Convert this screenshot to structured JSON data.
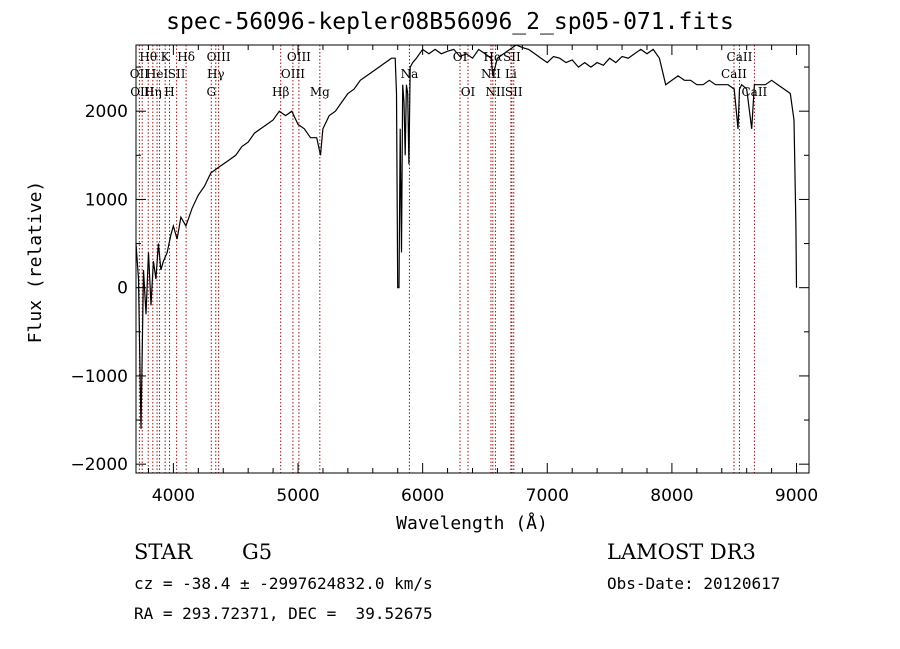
{
  "chart_data": {
    "type": "line",
    "title": "spec-56096-kepler08B56096_2_sp05-071.fits",
    "xlabel": "Wavelength (Å)",
    "ylabel": "Flux (relative)",
    "xlim": [
      3700,
      9100
    ],
    "ylim": [
      -2100,
      2750
    ],
    "xticks": [
      4000,
      5000,
      6000,
      7000,
      8000,
      9000
    ],
    "yticks": [
      -2000,
      -1000,
      0,
      1000,
      2000
    ],
    "series": [
      {
        "name": "flux",
        "x": [
          3700,
          3720,
          3740,
          3760,
          3780,
          3800,
          3820,
          3840,
          3860,
          3880,
          3900,
          3920,
          3950,
          3980,
          4000,
          4030,
          4060,
          4100,
          4150,
          4200,
          4250,
          4300,
          4350,
          4400,
          4450,
          4500,
          4550,
          4600,
          4650,
          4700,
          4750,
          4800,
          4850,
          4900,
          4950,
          5000,
          5050,
          5100,
          5150,
          5180,
          5200,
          5250,
          5300,
          5350,
          5400,
          5450,
          5500,
          5550,
          5600,
          5650,
          5700,
          5750,
          5780,
          5790,
          5800,
          5810,
          5820,
          5830,
          5840,
          5850,
          5860,
          5870,
          5880,
          5890,
          5900,
          5920,
          5950,
          6000,
          6050,
          6100,
          6150,
          6200,
          6250,
          6300,
          6350,
          6400,
          6450,
          6500,
          6550,
          6563,
          6600,
          6650,
          6700,
          6750,
          6800,
          6850,
          6900,
          6950,
          7000,
          7050,
          7100,
          7150,
          7200,
          7250,
          7300,
          7350,
          7400,
          7450,
          7500,
          7550,
          7600,
          7650,
          7700,
          7750,
          7800,
          7850,
          7900,
          7950,
          8000,
          8050,
          8100,
          8150,
          8200,
          8250,
          8300,
          8350,
          8400,
          8450,
          8500,
          8530,
          8542,
          8560,
          8600,
          8640,
          8662,
          8680,
          8700,
          8750,
          8800,
          8850,
          8900,
          8950,
          8980,
          8995,
          9000
        ],
        "y": [
          500,
          100,
          -1600,
          200,
          -300,
          400,
          -200,
          300,
          100,
          500,
          200,
          300,
          400,
          600,
          700,
          550,
          800,
          700,
          900,
          1050,
          1150,
          1300,
          1350,
          1400,
          1450,
          1500,
          1600,
          1650,
          1750,
          1800,
          1850,
          1900,
          2000,
          1950,
          2000,
          1850,
          1800,
          1700,
          1700,
          1500,
          1800,
          1950,
          2000,
          2100,
          2200,
          2250,
          2350,
          2400,
          2450,
          2500,
          2550,
          2600,
          2600,
          2200,
          0,
          0,
          1800,
          400,
          2300,
          2100,
          1500,
          2300,
          2200,
          1400,
          2500,
          2550,
          2600,
          2700,
          2650,
          2700,
          2650,
          2680,
          2700,
          2620,
          2650,
          2600,
          2700,
          2650,
          2600,
          2400,
          2600,
          2650,
          2700,
          2750,
          2720,
          2700,
          2650,
          2600,
          2550,
          2620,
          2600,
          2550,
          2580,
          2500,
          2550,
          2500,
          2550,
          2520,
          2600,
          2550,
          2620,
          2600,
          2650,
          2700,
          2650,
          2700,
          2600,
          2300,
          2350,
          2400,
          2350,
          2350,
          2300,
          2300,
          2350,
          2300,
          2300,
          2300,
          2250,
          1800,
          2250,
          2300,
          2250,
          1800,
          2300,
          2300,
          2300,
          2300,
          2350,
          2300,
          2250,
          2200,
          1900,
          700,
          0
        ]
      }
    ],
    "lines": [
      {
        "wave": 3727,
        "label": "OII",
        "row": 2
      },
      {
        "wave": 3750,
        "label": "OIII",
        "row": 3
      },
      {
        "wave": 3798,
        "label": "Hθ",
        "row": 1
      },
      {
        "wave": 3835,
        "label": "Hη",
        "row": 3
      },
      {
        "wave": 3869,
        "label": "HeI",
        "row": 2
      },
      {
        "wave": 3889,
        "label": "",
        "row": 0
      },
      {
        "wave": 3934,
        "label": "K",
        "row": 1
      },
      {
        "wave": 3969,
        "label": "H",
        "row": 3
      },
      {
        "wave": 4026,
        "label": "SII",
        "row": 2
      },
      {
        "wave": 4102,
        "label": "Hδ",
        "row": 1
      },
      {
        "wave": 4304,
        "label": "G",
        "row": 3
      },
      {
        "wave": 4340,
        "label": "Hγ",
        "row": 2
      },
      {
        "wave": 4363,
        "label": "OIII",
        "row": 1
      },
      {
        "wave": 4861,
        "label": "Hβ",
        "row": 3
      },
      {
        "wave": 4959,
        "label": "OIII",
        "row": 2
      },
      {
        "wave": 5007,
        "label": "OIII",
        "row": 1
      },
      {
        "wave": 5175,
        "label": "Mg",
        "row": 3
      },
      {
        "wave": 5894,
        "label": "Na",
        "row": 2
      },
      {
        "wave": 6300,
        "label": "OI",
        "row": 1
      },
      {
        "wave": 6364,
        "label": "OI",
        "row": 3
      },
      {
        "wave": 6548,
        "label": "NII",
        "row": 2
      },
      {
        "wave": 6563,
        "label": "Hα",
        "row": 1
      },
      {
        "wave": 6584,
        "label": "NII",
        "row": 3
      },
      {
        "wave": 6708,
        "label": "Li",
        "row": 2
      },
      {
        "wave": 6716,
        "label": "SII",
        "row": 1
      },
      {
        "wave": 6731,
        "label": "SII",
        "row": 3
      },
      {
        "wave": 8498,
        "label": "CaII",
        "row": 2
      },
      {
        "wave": 8542,
        "label": "CaII",
        "row": 1
      },
      {
        "wave": 8662,
        "label": "CaII",
        "row": 3
      }
    ]
  },
  "info": {
    "object_class": "STAR",
    "subclass": "G5",
    "survey": "LAMOST DR3",
    "cz_line": "cz = -38.4 ± -2997624832.0 km/s",
    "obs_date": "Obs-Date: 20120617",
    "coords": "RA = 293.72371, DEC =  39.52675"
  },
  "colors": {
    "line_marker": "#a01010",
    "spectrum": "#000000"
  }
}
